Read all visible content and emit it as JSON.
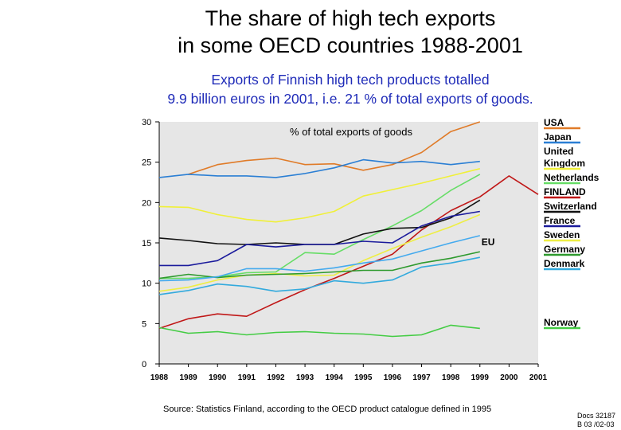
{
  "title_line1": "The share of high tech exports",
  "title_line2": "in some OECD countries 1988-2001",
  "subtitle_line1": "Exports of Finnish high tech products totalled",
  "subtitle_line2": "9.9 billion euros in 2001, i.e. 21 % of total exports of goods.",
  "source": "Source: Statistics Finland, according to the OECD product catalogue defined in 1995",
  "doc_ref_line1": "Docs 32187",
  "doc_ref_line2": "B 03 /02-03",
  "chart_data": {
    "type": "line",
    "unit_label": "% of total exports of goods",
    "x": [
      "1988",
      "1989",
      "1990",
      "1991",
      "1992",
      "1993",
      "1994",
      "1995",
      "1996",
      "1997",
      "1998",
      "1999",
      "2000",
      "2001"
    ],
    "ylim": [
      0,
      30
    ],
    "yticks": [
      "0",
      "5",
      "10",
      "15",
      "20",
      "25",
      "30"
    ],
    "grid": false,
    "legend_position": "right",
    "plot_background": "#e6e6e6",
    "annotation": "EU",
    "series": [
      {
        "name": "USA",
        "color": "#e07b28",
        "values": [
          null,
          23.5,
          24.7,
          25.2,
          25.5,
          24.7,
          24.8,
          24.0,
          24.7,
          26.2,
          28.8,
          30.0,
          null,
          null
        ]
      },
      {
        "name": "Japan",
        "color": "#2b7fd4",
        "values": [
          23.1,
          23.5,
          23.3,
          23.3,
          23.1,
          23.6,
          24.3,
          25.3,
          24.9,
          25.1,
          24.7,
          25.1,
          null,
          null
        ]
      },
      {
        "name": "United Kingdom",
        "color": "#f0f038",
        "values": [
          19.5,
          19.4,
          18.5,
          17.9,
          17.6,
          18.1,
          18.9,
          20.8,
          21.6,
          22.4,
          23.3,
          24.2,
          null,
          null
        ]
      },
      {
        "name": "Netherlands",
        "color": "#66dd66",
        "values": [
          10.6,
          10.6,
          10.8,
          11.3,
          11.4,
          13.8,
          13.6,
          15.4,
          17.1,
          19.0,
          21.5,
          23.5,
          null,
          null
        ]
      },
      {
        "name": "FINLAND",
        "color": "#c01818",
        "values": [
          4.4,
          5.6,
          6.2,
          5.9,
          7.6,
          9.2,
          10.6,
          12.1,
          13.6,
          16.6,
          19.0,
          20.7,
          23.3,
          21.0
        ]
      },
      {
        "name": "Switzerland",
        "color": "#111111",
        "values": [
          15.6,
          15.3,
          14.9,
          14.8,
          15.0,
          14.8,
          14.8,
          16.1,
          16.8,
          16.9,
          18.1,
          20.3,
          null,
          null
        ]
      },
      {
        "name": "France",
        "color": "#1b1b9c",
        "values": [
          12.2,
          12.2,
          12.8,
          14.8,
          14.5,
          14.8,
          14.8,
          15.2,
          15.0,
          17.1,
          18.3,
          18.9,
          null,
          null
        ]
      },
      {
        "name": "Sweden",
        "color": "#eeee44",
        "values": [
          9.0,
          9.5,
          10.4,
          11.0,
          11.2,
          10.9,
          11.0,
          12.8,
          14.3,
          15.7,
          17.0,
          18.5,
          null,
          null
        ]
      },
      {
        "name": "Germany",
        "color": "#2e9a2e",
        "values": [
          10.6,
          11.1,
          10.7,
          11.0,
          11.1,
          11.2,
          11.4,
          11.6,
          11.6,
          12.5,
          13.1,
          13.9,
          null,
          null
        ]
      },
      {
        "name": "Denmark",
        "color": "#33aadd",
        "values": [
          8.6,
          9.1,
          9.9,
          9.6,
          9.0,
          9.3,
          10.3,
          10.0,
          10.4,
          12.0,
          12.5,
          13.2,
          null,
          null
        ]
      },
      {
        "name": "Norway",
        "color": "#44cc44",
        "values": [
          4.5,
          3.8,
          4.0,
          3.6,
          3.9,
          4.0,
          3.8,
          3.7,
          3.4,
          3.6,
          4.8,
          4.4,
          null,
          null
        ]
      },
      {
        "name": "EU",
        "color": "#44aaee",
        "values": [
          10.3,
          10.4,
          10.8,
          11.8,
          11.8,
          11.5,
          11.9,
          12.5,
          13.0,
          14.0,
          15.0,
          15.9,
          null,
          null
        ]
      }
    ]
  }
}
